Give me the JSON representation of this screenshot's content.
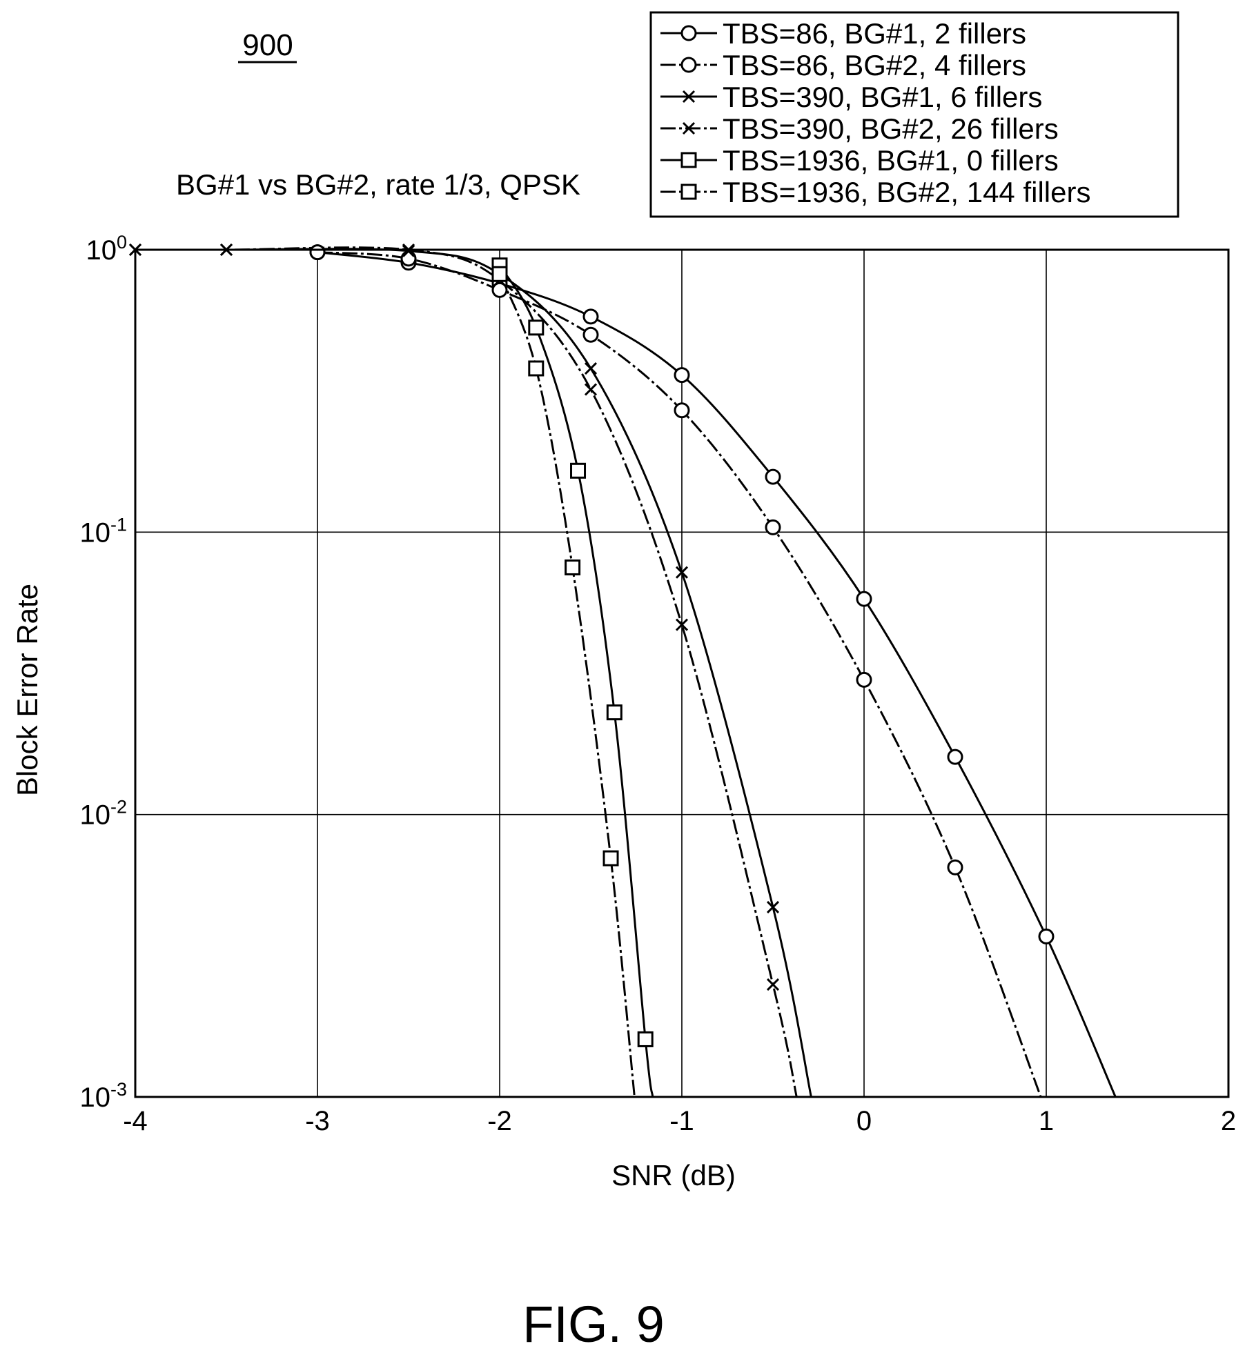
{
  "figure_number": "900",
  "caption": "FIG. 9",
  "chart_data": {
    "type": "line",
    "title": "BG#1 vs BG#2, rate 1/3, QPSK",
    "xlabel": "SNR (dB)",
    "ylabel": "Block Error Rate",
    "xlim": [
      -4,
      2
    ],
    "ylim": [
      0.001,
      1
    ],
    "yscale": "log",
    "grid": true,
    "legend_position": "top-right, above plot",
    "x_ticks": [
      "-4",
      "-3",
      "-2",
      "-1",
      "0",
      "1",
      "2"
    ],
    "y_ticks": [
      {
        "base": "10",
        "exp": "0",
        "value": 1
      },
      {
        "base": "10",
        "exp": "-1",
        "value": 0.1
      },
      {
        "base": "10",
        "exp": "-2",
        "value": 0.01
      },
      {
        "base": "10",
        "exp": "-3",
        "value": 0.001
      }
    ],
    "series": [
      {
        "name": "TBS=86, BG#1, 2 fillers",
        "line": "solid",
        "marker": "circle",
        "x": [
          -3,
          -2.5,
          -2,
          -1.5,
          -1,
          -0.5,
          0,
          0.5,
          1,
          1.38
        ],
        "y": [
          0.98,
          0.9,
          0.76,
          0.58,
          0.36,
          0.157,
          0.058,
          0.016,
          0.0037,
          0.001
        ]
      },
      {
        "name": "TBS=86, BG#2, 4 fillers",
        "line": "dashdot",
        "marker": "circle",
        "x": [
          -3,
          -2.5,
          -2,
          -1.5,
          -1,
          -0.5,
          0,
          0.5,
          0.97
        ],
        "y": [
          0.98,
          0.93,
          0.72,
          0.5,
          0.27,
          0.104,
          0.03,
          0.0065,
          0.001
        ]
      },
      {
        "name": "TBS=390, BG#1, 6 fillers",
        "line": "solid",
        "marker": "x",
        "x": [
          -4,
          -3.5,
          -2.5,
          -2,
          -1.5,
          -1,
          -0.5,
          -0.29
        ],
        "y": [
          1,
          1,
          0.99,
          0.82,
          0.38,
          0.072,
          0.0047,
          0.001
        ]
      },
      {
        "name": "TBS=390, BG#2, 26 fillers",
        "line": "dashdot",
        "marker": "x",
        "x": [
          -4,
          -3.5,
          -2.5,
          -2,
          -1.5,
          -1,
          -0.5,
          -0.37
        ],
        "y": [
          1,
          1,
          1,
          0.78,
          0.32,
          0.047,
          0.0025,
          0.001
        ]
      },
      {
        "name": "TBS=1936, BG#1, 0 fillers",
        "line": "solid",
        "marker": "square",
        "x": [
          -2,
          -1.8,
          -1.57,
          -1.37,
          -1.2,
          -1.16
        ],
        "y": [
          0.88,
          0.53,
          0.165,
          0.023,
          0.0016,
          0.001
        ]
      },
      {
        "name": "TBS=1936, BG#2, 144 fillers",
        "line": "dashdot",
        "marker": "square",
        "x": [
          -2,
          -1.8,
          -1.6,
          -1.39,
          -1.26
        ],
        "y": [
          0.82,
          0.38,
          0.075,
          0.007,
          0.001
        ]
      }
    ]
  }
}
